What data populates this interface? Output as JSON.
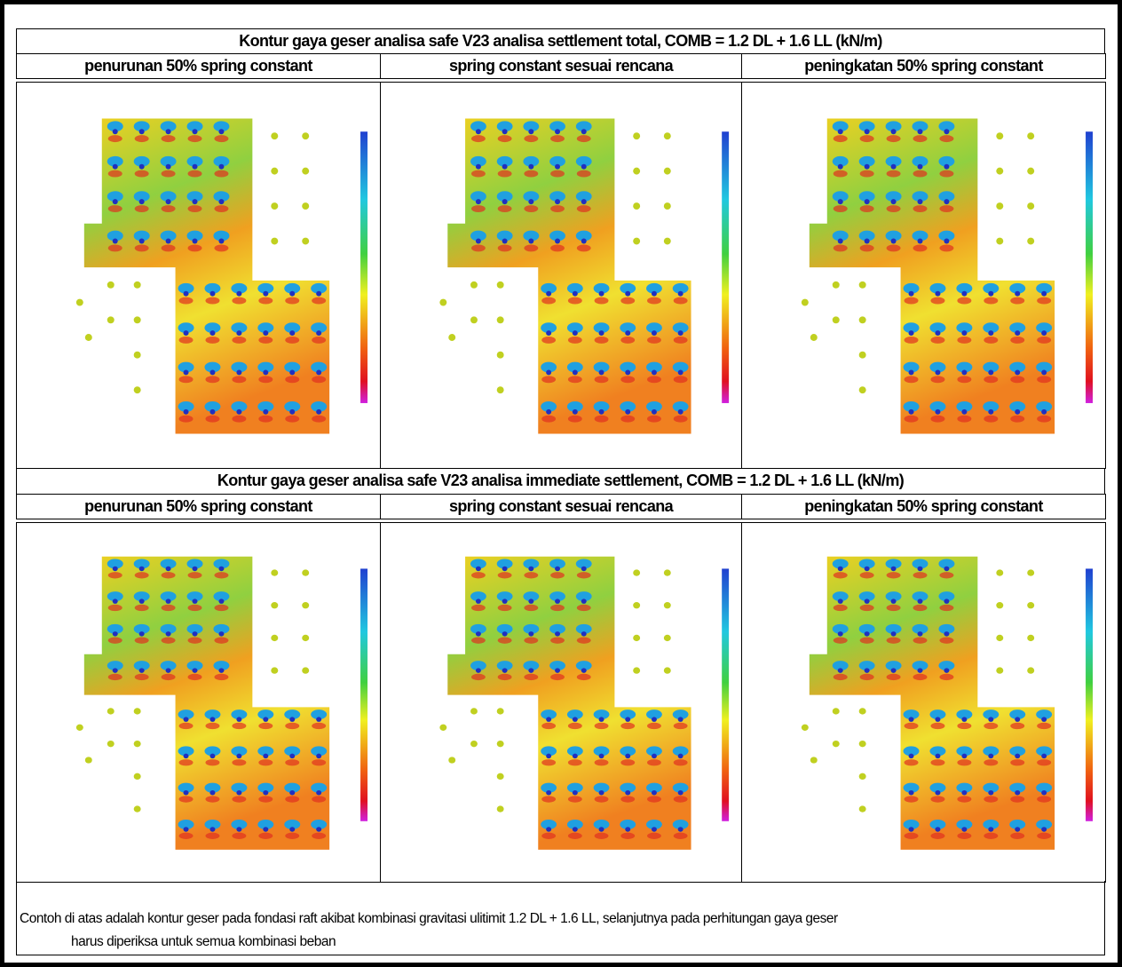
{
  "sections": [
    {
      "title": "Kontur gaya geser analisa safe V23 analisa settlement total, COMB = 1.2 DL + 1.6 LL (kN/m)",
      "columns": [
        "penurunan 50% spring constant",
        "spring constant sesuai rencana",
        "peningkatan 50% spring constant"
      ]
    },
    {
      "title": "Kontur gaya geser analisa safe V23 analisa immediate settlement, COMB = 1.2 DL + 1.6 LL (kN/m)",
      "columns": [
        "penurunan 50% spring constant",
        "spring constant sesuai rencana",
        "peningkatan 50% spring constant"
      ]
    }
  ],
  "caption": [
    "Contoh di atas adalah kontur geser pada fondasi raft akibat kombinasi gravitasi ulitimit 1.2 DL + 1.6 LL, selanjutnya pada perhitungan gaya geser",
    "harus diperiksa untuk semua kombinasi beban"
  ]
}
